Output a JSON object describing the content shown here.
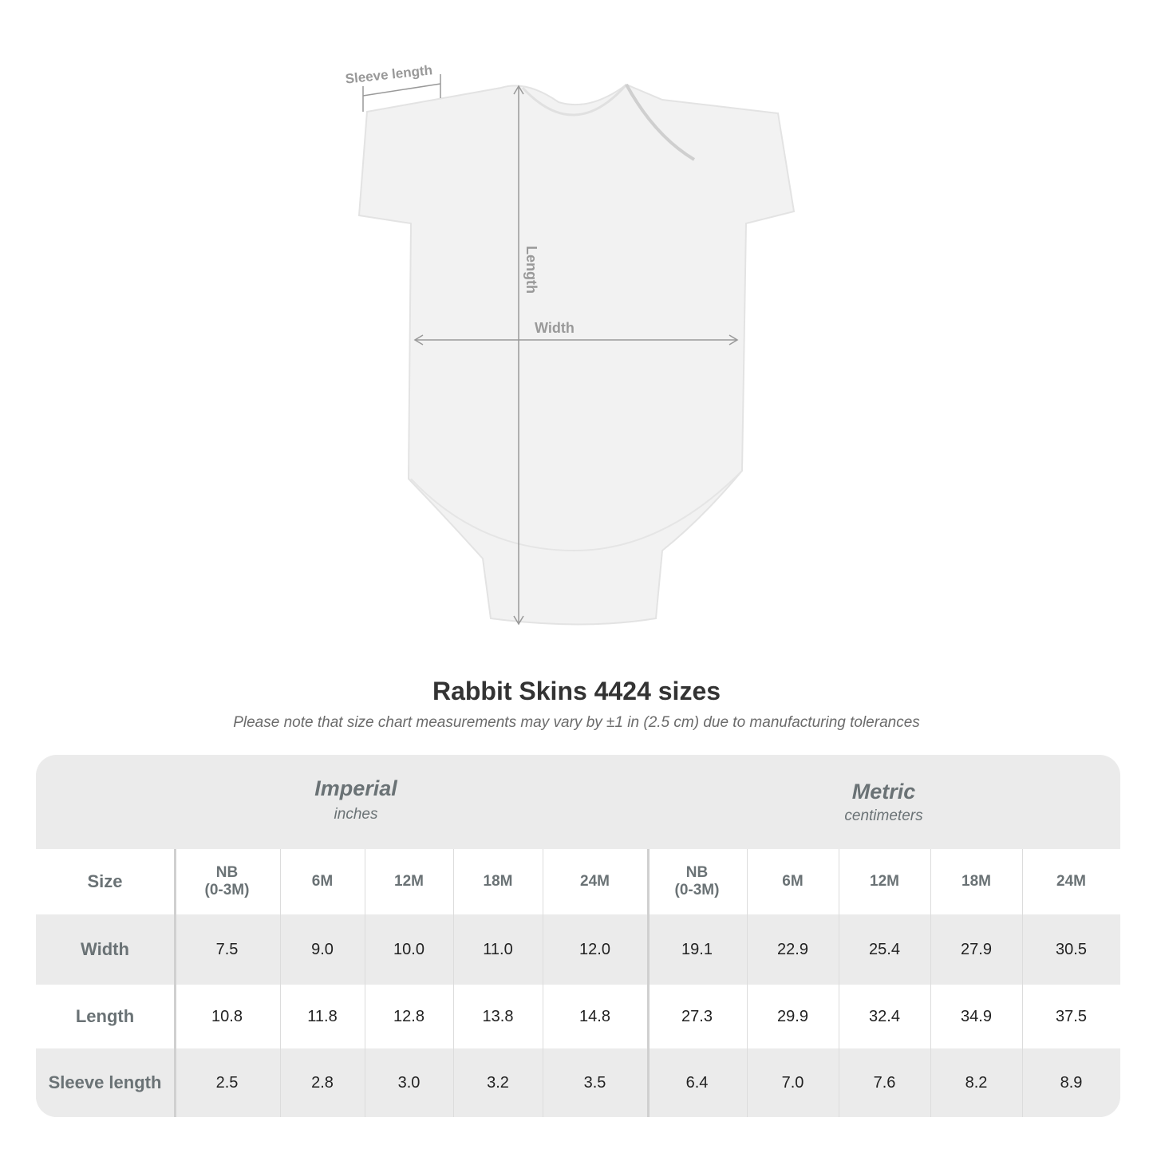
{
  "diagram": {
    "labels": {
      "sleeve": "Sleeve length",
      "length": "Length",
      "width": "Width"
    }
  },
  "title": "Rabbit Skins 4424 sizes",
  "note": "Please note that size chart measurements may vary by ±1 in (2.5 cm) due to manufacturing tolerances",
  "table": {
    "imperial": {
      "label": "Imperial",
      "unit": "inches"
    },
    "metric": {
      "label": "Metric",
      "unit": "centimeters"
    },
    "size_label": "Size",
    "sizes": [
      "NB\n(0-3M)",
      "6M",
      "12M",
      "18M",
      "24M"
    ],
    "rows": [
      {
        "label": "Width",
        "imperial": [
          "7.5",
          "9.0",
          "10.0",
          "11.0",
          "12.0"
        ],
        "metric": [
          "19.1",
          "22.9",
          "25.4",
          "27.9",
          "30.5"
        ]
      },
      {
        "label": "Length",
        "imperial": [
          "10.8",
          "11.8",
          "12.8",
          "13.8",
          "14.8"
        ],
        "metric": [
          "27.3",
          "29.9",
          "32.4",
          "34.9",
          "37.5"
        ]
      },
      {
        "label": "Sleeve length",
        "imperial": [
          "2.5",
          "2.8",
          "3.0",
          "3.2",
          "3.5"
        ],
        "metric": [
          "6.4",
          "7.0",
          "7.6",
          "8.2",
          "8.9"
        ]
      }
    ]
  }
}
